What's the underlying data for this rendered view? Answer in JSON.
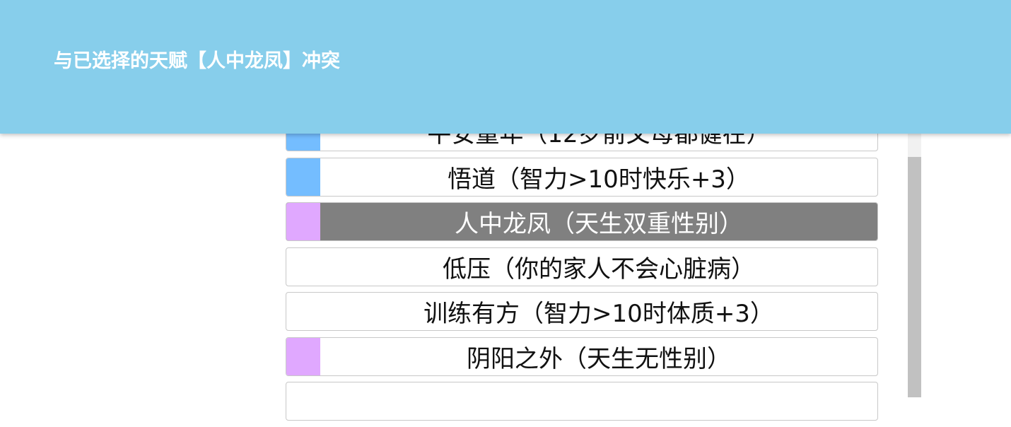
{
  "toast": {
    "message": "与已选择的天赋【人中龙凤】冲突"
  },
  "colors": {
    "toast_bg": "#87ceeb",
    "grade_blue": "#74bdff",
    "grade_purple": "#e0a8ff",
    "selected_bg": "#808080"
  },
  "talents": [
    {
      "label": "平安童年（12岁前父母都健在）",
      "grade_color": "#74bdff",
      "selected": false
    },
    {
      "label": "悟道（智力>10时快乐+3）",
      "grade_color": "#74bdff",
      "selected": false
    },
    {
      "label": "人中龙凤（天生双重性别）",
      "grade_color": "#e0a8ff",
      "selected": true
    },
    {
      "label": "低压（你的家人不会心脏病）",
      "grade_color": "",
      "selected": false
    },
    {
      "label": "训练有方（智力>10时体质+3）",
      "grade_color": "",
      "selected": false
    },
    {
      "label": "阴阳之外（天生无性别）",
      "grade_color": "#e0a8ff",
      "selected": false
    },
    {
      "label": "",
      "grade_color": "",
      "selected": false
    }
  ]
}
